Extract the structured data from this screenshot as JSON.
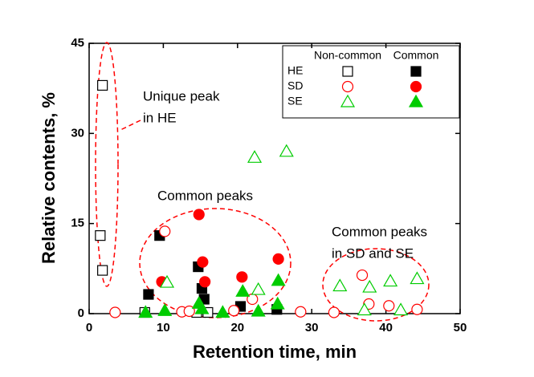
{
  "chart_data": {
    "type": "scatter",
    "x_label": "Retention time, min",
    "y_label": "Relative contents, %",
    "xlim": [
      0,
      50
    ],
    "xticks": [
      0,
      10,
      20,
      30,
      40,
      50
    ],
    "ylim": [
      0,
      45
    ],
    "yticks": [
      0,
      15,
      30,
      45
    ],
    "series": [
      {
        "name": "HE",
        "group": "Non-common",
        "marker": "square",
        "filled": false,
        "color": "#000000",
        "x": [
          1.8,
          1.5,
          1.8,
          7.5,
          14.5,
          16.0
        ],
        "values": [
          38,
          13,
          7.2,
          0.2,
          0.2,
          0.2
        ]
      },
      {
        "name": "HE",
        "group": "Common",
        "marker": "square",
        "filled": true,
        "color": "#000000",
        "x": [
          8.0,
          9.5,
          14.7,
          15.2,
          15.5,
          20.4,
          25.3
        ],
        "values": [
          3.2,
          13,
          7.8,
          4.2,
          2.4,
          1.2,
          0.7
        ]
      },
      {
        "name": "SD",
        "group": "Non-common",
        "marker": "circle",
        "filled": false,
        "color": "#ff0000",
        "x": [
          10.2,
          3.5,
          12.5,
          13.5,
          19.5,
          22.0,
          28.5,
          33.0,
          36.8,
          37.7,
          40.4,
          44.2
        ],
        "values": [
          13.7,
          0.2,
          0.3,
          0.4,
          0.5,
          2.4,
          0.3,
          0.2,
          6.4,
          1.6,
          1.3,
          0.7
        ]
      },
      {
        "name": "SD",
        "group": "Common",
        "marker": "circle",
        "filled": true,
        "color": "#ff0000",
        "x": [
          14.8,
          15.3,
          9.8,
          15.6,
          20.6,
          25.5
        ],
        "values": [
          16.5,
          8.6,
          5.3,
          5.3,
          6.1,
          9.1
        ]
      },
      {
        "name": "SE",
        "group": "Non-common",
        "marker": "triangle",
        "filled": false,
        "color": "#00cc00",
        "x": [
          22.3,
          26.6,
          10.5,
          22.8,
          33.8,
          37.8,
          40.6,
          44.2,
          37.1,
          42.0
        ],
        "values": [
          26,
          27,
          5.2,
          4.0,
          4.6,
          4.4,
          5.4,
          5.8,
          0.6,
          0.6
        ]
      },
      {
        "name": "SE",
        "group": "Common",
        "marker": "triangle",
        "filled": true,
        "color": "#00cc00",
        "x": [
          7.6,
          10.2,
          14.8,
          15.2,
          18.0,
          20.7,
          22.8,
          25.4,
          25.5
        ],
        "values": [
          0.2,
          0.5,
          1.7,
          0.8,
          0.2,
          3.7,
          0.4,
          1.6,
          5.5
        ]
      }
    ],
    "annotations": [
      {
        "lines": [
          "Unique peak",
          "in HE"
        ]
      },
      {
        "lines": [
          "Common peaks"
        ]
      },
      {
        "lines": [
          "Common peaks",
          "in SD and SE"
        ]
      }
    ]
  }
}
